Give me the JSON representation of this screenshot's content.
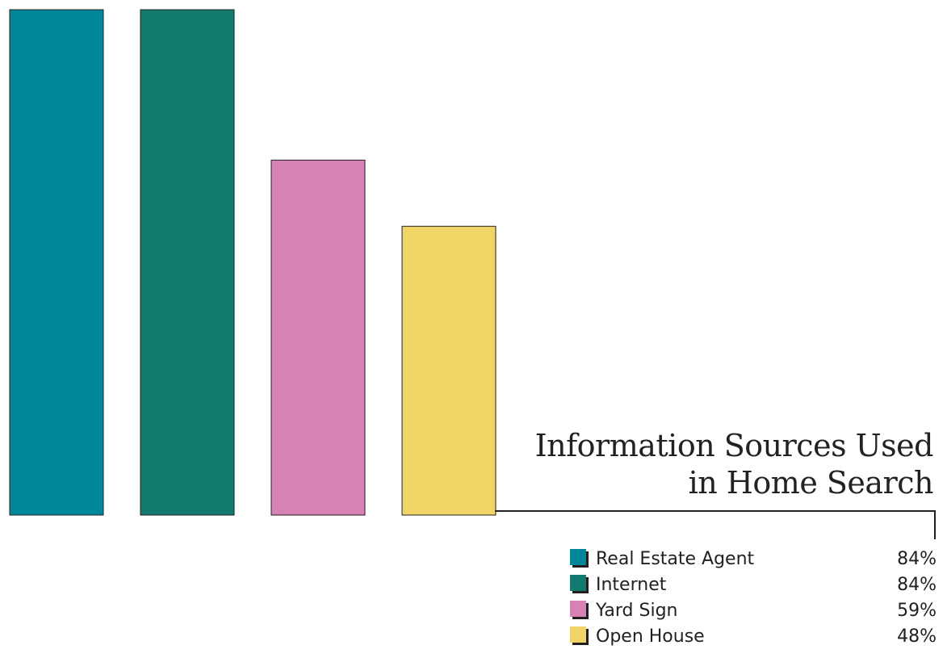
{
  "chart_data": {
    "type": "bar",
    "title_lines": [
      "Information Sources Used",
      "in Home Search"
    ],
    "categories": [
      "Real Estate Agent",
      "Internet",
      "Yard Sign",
      "Open House"
    ],
    "values": [
      84,
      84,
      59,
      48
    ],
    "value_labels": [
      "84%",
      "84%",
      "59%",
      "48%"
    ],
    "colors": [
      "#00879a",
      "#137a70",
      "#d682b4",
      "#f0d466"
    ],
    "ylim": [
      0,
      84
    ],
    "grid": false,
    "legend_position": "bottom-right"
  }
}
